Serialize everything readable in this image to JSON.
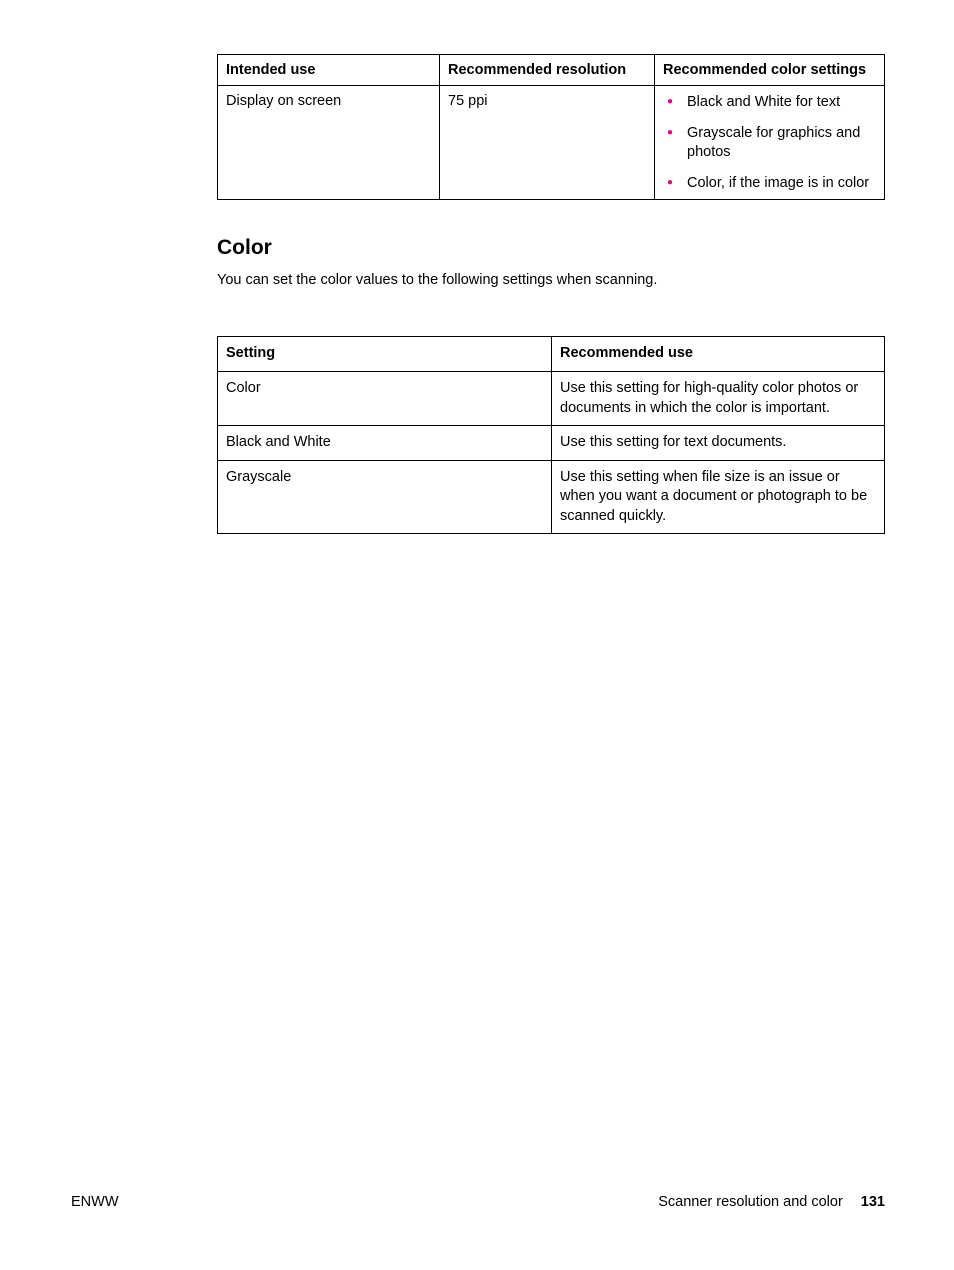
{
  "table1": {
    "headers": [
      "Intended use",
      "Recommended resolution",
      "Recommended color settings"
    ],
    "row": {
      "intended_use": "Display on screen",
      "resolution": "75 ppi",
      "bullets": [
        "Black and White for text",
        "Grayscale for graphics and photos",
        "Color, if the image is in color"
      ]
    }
  },
  "section": {
    "heading": "Color",
    "text": "You can set the color values to the following settings when scanning."
  },
  "table2": {
    "headers": [
      "Setting",
      "Recommended use"
    ],
    "rows": [
      {
        "setting": "Color",
        "use": "Use this setting for high-quality color photos or documents in which the color is important."
      },
      {
        "setting": "Black and White",
        "use": "Use this setting for text documents."
      },
      {
        "setting": "Grayscale",
        "use": "Use this setting when file size is an issue or when you want a document or photograph to be scanned quickly."
      }
    ]
  },
  "footer": {
    "left": "ENWW",
    "right_text": "Scanner resolution and color",
    "page": "131"
  },
  "colors": {
    "bullet": "#e6007e",
    "text": "#000000",
    "background": "#ffffff",
    "border": "#000000"
  }
}
